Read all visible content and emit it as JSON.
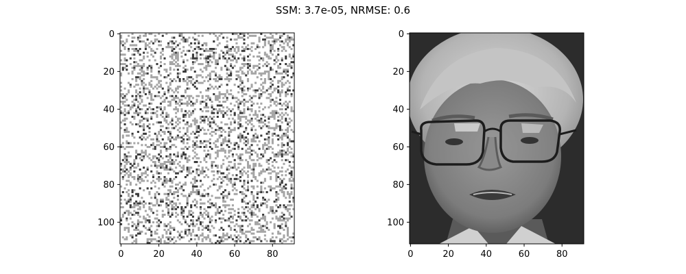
{
  "figure": {
    "suptitle": "SSM: 3.7e-05, NRMSE: 0.6"
  },
  "chart_data": [
    {
      "type": "heatmap",
      "colormap": "gray",
      "content": "random binary-ish noise image",
      "image_shape": [
        112,
        92
      ],
      "xlim": [
        -0.5,
        91.5
      ],
      "ylim": [
        111.5,
        -0.5
      ],
      "xticks": [
        0,
        20,
        40,
        60,
        80
      ],
      "yticks": [
        0,
        20,
        40,
        60,
        80,
        100
      ],
      "xtick_labels": [
        "0",
        "20",
        "40",
        "60",
        "80"
      ],
      "ytick_labels": [
        "0",
        "20",
        "40",
        "60",
        "80",
        "100"
      ],
      "title": "",
      "xlabel": "",
      "ylabel": ""
    },
    {
      "type": "heatmap",
      "colormap": "gray",
      "content": "grayscale face photograph of a man with glasses",
      "image_shape": [
        112,
        92
      ],
      "xlim": [
        -0.5,
        91.5
      ],
      "ylim": [
        111.5,
        -0.5
      ],
      "xticks": [
        0,
        20,
        40,
        60,
        80
      ],
      "yticks": [
        0,
        20,
        40,
        60,
        80,
        100
      ],
      "xtick_labels": [
        "0",
        "20",
        "40",
        "60",
        "80"
      ],
      "ytick_labels": [
        "0",
        "20",
        "40",
        "60",
        "80",
        "100"
      ],
      "title": "",
      "xlabel": "",
      "ylabel": ""
    }
  ]
}
